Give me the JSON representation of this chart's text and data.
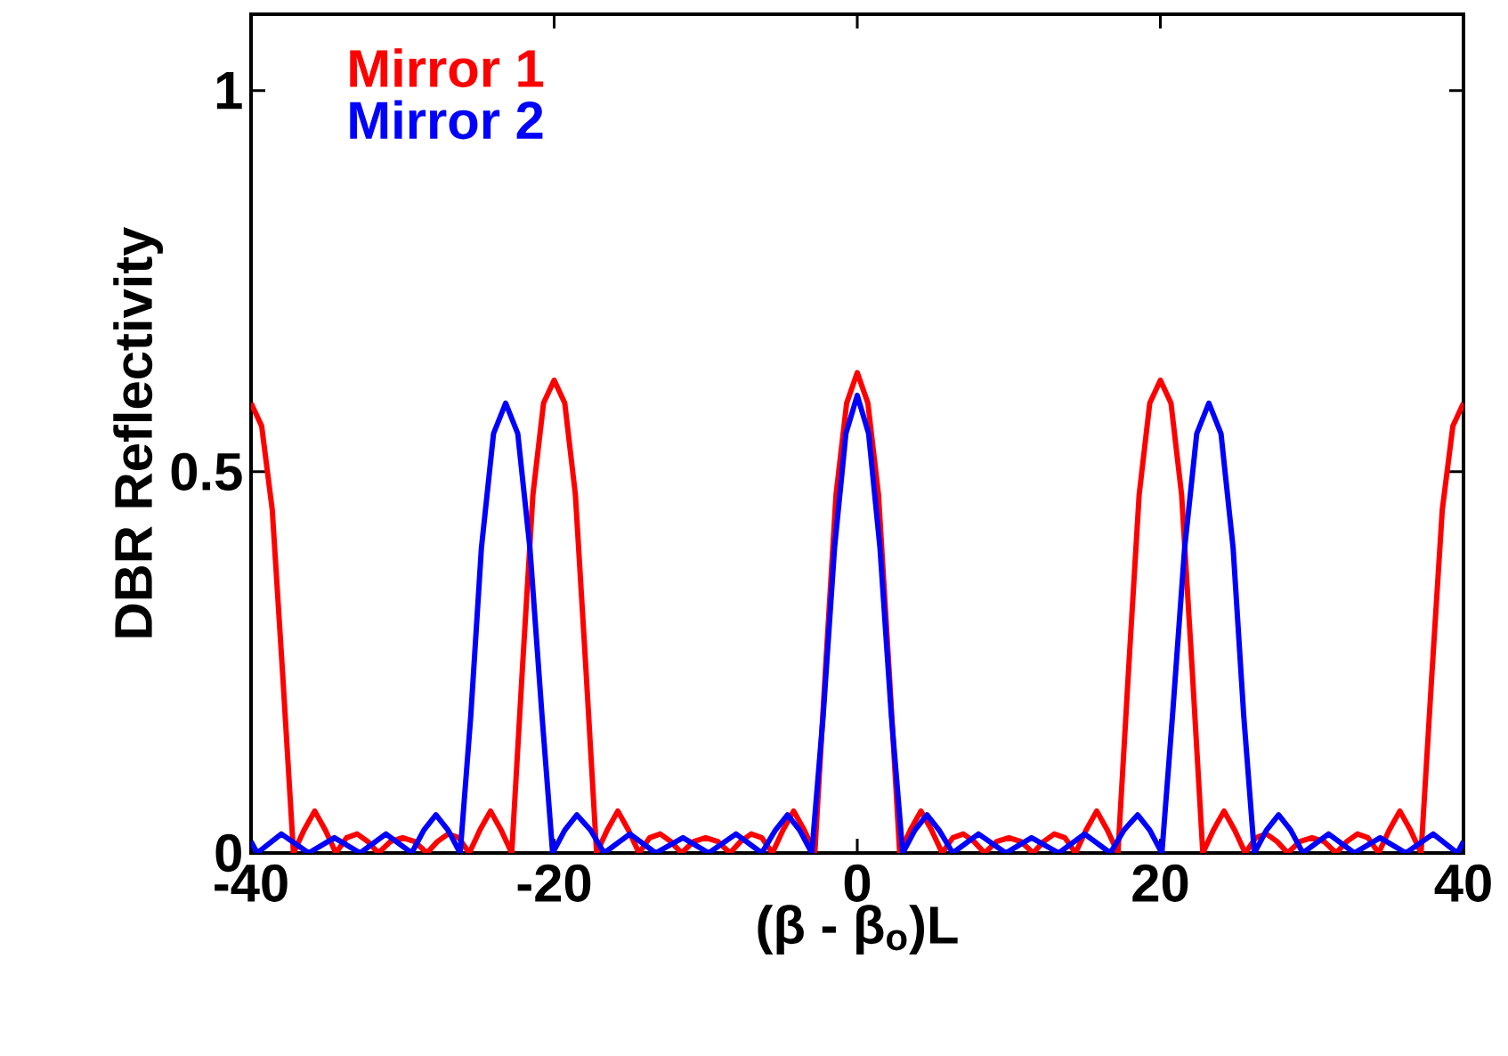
{
  "chart_data": {
    "type": "line",
    "xlabel": "(β - β$_{o}$)L",
    "ylabel": "DBR Reflectivity",
    "xlim": [
      -40,
      40
    ],
    "ylim": [
      0,
      1.1
    ],
    "xticks": [
      -40,
      -20,
      0,
      20,
      40
    ],
    "yticks": [
      0,
      0.5,
      1
    ],
    "grid": false,
    "legend": "top left",
    "marker": "none",
    "line_style": "solid",
    "series": [
      {
        "name": "Mirror 1",
        "color": "#ff0000",
        "x": [
          -40,
          -39.3,
          -38.6,
          -37.9,
          -37.2,
          -36.5,
          -35.8,
          -35.1,
          -34.4,
          -33.7,
          -33,
          -32.3,
          -31.6,
          -30.8,
          -30,
          -29.2,
          -28.4,
          -27.7,
          -27,
          -26.3,
          -25.6,
          -24.9,
          -24.2,
          -23.5,
          -22.8,
          -22.1,
          -21.4,
          -20.7,
          -20,
          -19.3,
          -18.6,
          -17.9,
          -17.2,
          -16.5,
          -15.8,
          -15.1,
          -14.4,
          -13.7,
          -13,
          -12.3,
          -11.6,
          -10.8,
          -10,
          -9.2,
          -8.4,
          -7.7,
          -7,
          -6.3,
          -5.6,
          -4.9,
          -4.2,
          -3.5,
          -2.8,
          -2.1,
          -1.4,
          -0.7,
          0,
          0.7,
          1.4,
          2.1,
          2.8,
          3.5,
          4.2,
          4.9,
          5.6,
          6.3,
          7,
          7.7,
          8.4,
          9.2,
          10,
          10.8,
          11.6,
          12.3,
          13,
          13.7,
          14.4,
          15.1,
          15.8,
          16.5,
          17.2,
          17.9,
          18.6,
          19.3,
          20,
          20.7,
          21.4,
          22.1,
          22.8,
          23.5,
          24.2,
          24.9,
          25.6,
          26.3,
          27,
          27.7,
          28.4,
          29.2,
          30,
          30.8,
          31.6,
          32.3,
          33,
          33.7,
          34.4,
          35.1,
          35.8,
          36.5,
          37.2,
          37.9,
          38.6,
          39.3,
          40
        ],
        "values": [
          0.59,
          0.56,
          0.45,
          0.23,
          0,
          0.03,
          0.055,
          0.03,
          0,
          0.02,
          0.025,
          0.015,
          0,
          0.015,
          0.02,
          0.015,
          0,
          0.015,
          0.025,
          0.02,
          0,
          0.03,
          0.055,
          0.03,
          0,
          0.24,
          0.47,
          0.59,
          0.62,
          0.59,
          0.47,
          0.24,
          0,
          0.03,
          0.055,
          0.03,
          0,
          0.02,
          0.025,
          0.015,
          0,
          0.015,
          0.02,
          0.015,
          0,
          0.015,
          0.025,
          0.02,
          0,
          0.03,
          0.055,
          0.03,
          0,
          0.24,
          0.47,
          0.59,
          0.63,
          0.59,
          0.47,
          0.24,
          0,
          0.03,
          0.055,
          0.03,
          0,
          0.02,
          0.025,
          0.015,
          0,
          0.015,
          0.02,
          0.015,
          0,
          0.015,
          0.025,
          0.02,
          0,
          0.03,
          0.055,
          0.03,
          0,
          0.24,
          0.47,
          0.59,
          0.62,
          0.59,
          0.47,
          0.24,
          0,
          0.03,
          0.055,
          0.03,
          0,
          0.02,
          0.025,
          0.015,
          0,
          0.015,
          0.02,
          0.015,
          0,
          0.015,
          0.025,
          0.02,
          0,
          0.03,
          0.055,
          0.03,
          0,
          0.23,
          0.45,
          0.56,
          0.59
        ]
      },
      {
        "name": "Mirror 2",
        "color": "#0000ff",
        "x": [
          -40,
          -39.6,
          -38,
          -36.2,
          -34.5,
          -32.8,
          -31.1,
          -29.4,
          -28.6,
          -27.8,
          -27,
          -26.2,
          -25.5,
          -24.8,
          -24,
          -23.2,
          -22.4,
          -21.6,
          -20.8,
          -20.1,
          -19.3,
          -18.5,
          -17.6,
          -16.7,
          -15,
          -13.3,
          -11.5,
          -9.8,
          -8,
          -6.3,
          -5.4,
          -4.6,
          -3.8,
          -3,
          -2.25,
          -1.5,
          -0.75,
          0,
          0.75,
          1.5,
          2.25,
          3,
          3.8,
          4.6,
          5.4,
          6.3,
          8,
          9.8,
          11.5,
          13.3,
          15,
          16.7,
          17.6,
          18.5,
          19.3,
          20.1,
          20.8,
          21.6,
          22.4,
          23.2,
          24,
          24.8,
          25.5,
          26.2,
          27,
          27.8,
          28.6,
          29.4,
          31.1,
          32.8,
          34.5,
          36.2,
          38,
          39.6,
          40
        ],
        "values": [
          0.015,
          0,
          0.025,
          0,
          0.02,
          0,
          0.025,
          0,
          0.03,
          0.05,
          0.03,
          0,
          0.18,
          0.4,
          0.55,
          0.59,
          0.55,
          0.4,
          0.18,
          0,
          0.03,
          0.05,
          0.03,
          0,
          0.025,
          0,
          0.02,
          0,
          0.025,
          0,
          0.03,
          0.05,
          0.03,
          0,
          0.18,
          0.4,
          0.55,
          0.6,
          0.55,
          0.4,
          0.18,
          0,
          0.03,
          0.05,
          0.03,
          0,
          0.025,
          0,
          0.02,
          0,
          0.025,
          0,
          0.03,
          0.05,
          0.03,
          0,
          0.18,
          0.4,
          0.55,
          0.59,
          0.55,
          0.4,
          0.18,
          0,
          0.03,
          0.05,
          0.03,
          0,
          0.025,
          0,
          0.02,
          0,
          0.025,
          0,
          0.015
        ]
      }
    ]
  }
}
